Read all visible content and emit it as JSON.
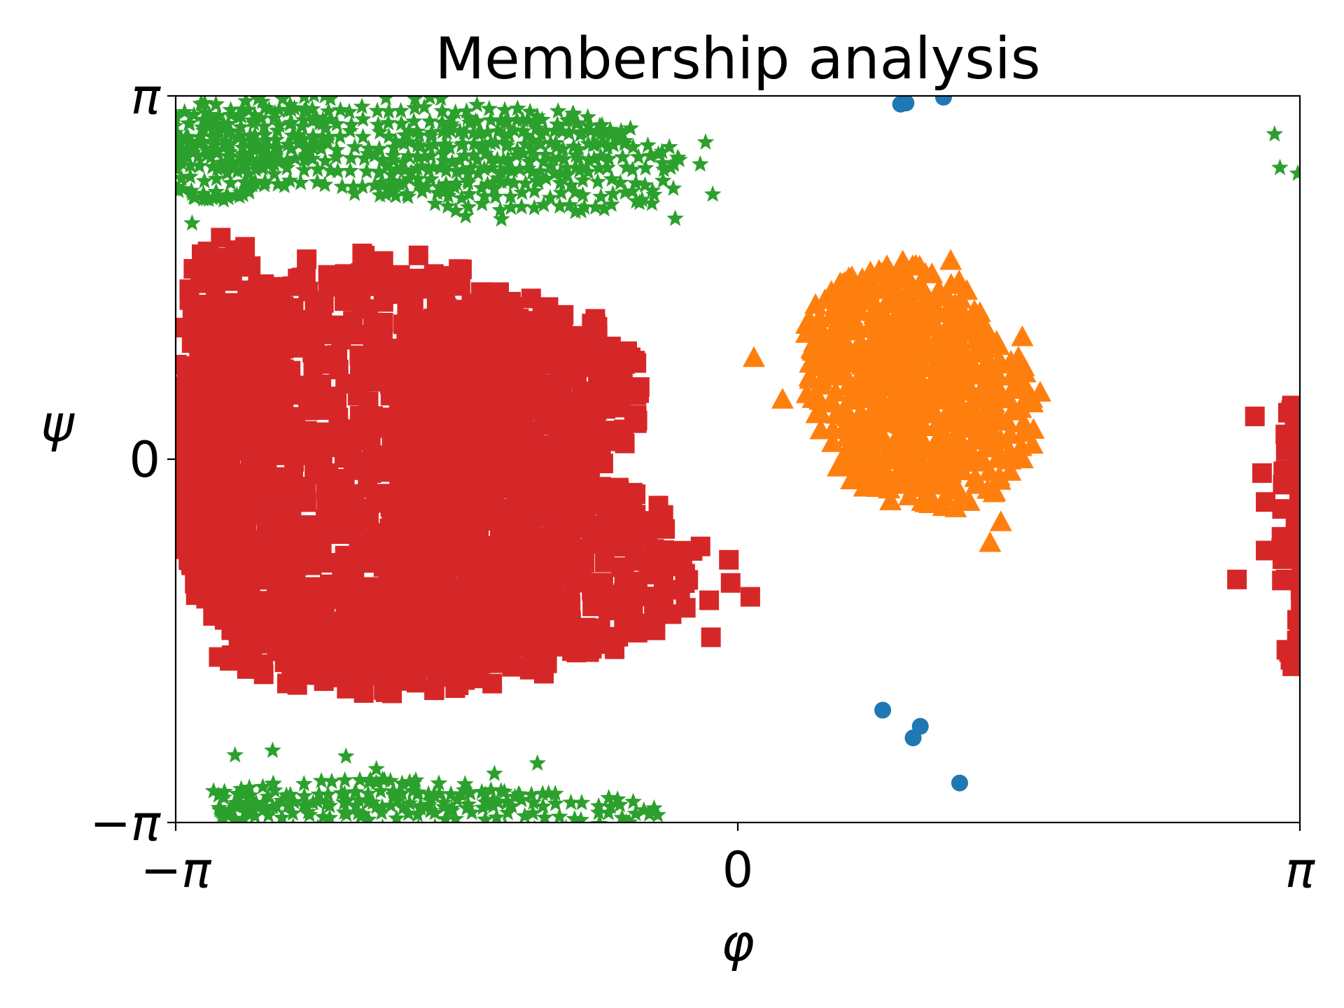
{
  "chart_data": {
    "type": "scatter",
    "title": "Membership analysis",
    "xlabel": "φ",
    "ylabel": "ψ",
    "xlim": [
      -3.14159,
      3.14159
    ],
    "ylim": [
      -3.14159,
      3.14159
    ],
    "xticks": [
      {
        "value": -3.14159,
        "label": "−π"
      },
      {
        "value": 0,
        "label": "0"
      },
      {
        "value": 3.14159,
        "label": "π"
      }
    ],
    "yticks": [
      {
        "value": -3.14159,
        "label": "−π"
      },
      {
        "value": 0,
        "label": "0"
      },
      {
        "value": 3.14159,
        "label": "π"
      }
    ],
    "grid": false,
    "legend": "none",
    "series": [
      {
        "color": "#1f77b4",
        "marker": "circle",
        "points": [
          [
            0.91,
            3.07
          ],
          [
            0.94,
            3.08
          ],
          [
            1.15,
            3.13
          ],
          [
            0.81,
            -2.17
          ],
          [
            1.02,
            -2.31
          ],
          [
            0.98,
            -2.41
          ],
          [
            1.24,
            -2.8
          ]
        ]
      },
      {
        "color": "#ff7f0e",
        "marker": "triangle",
        "regions": [
          {
            "cx": 0.92,
            "cy": 0.72,
            "rx": 0.52,
            "ry": 0.98
          },
          {
            "cx": 1.13,
            "cy": 0.38,
            "rx": 0.52,
            "ry": 0.8
          },
          {
            "cx": 0.82,
            "cy": 1.13,
            "rx": 0.42,
            "ry": 0.45
          }
        ],
        "points": [
          [
            1.19,
            1.72
          ],
          [
            1.28,
            1.46
          ],
          [
            1.59,
            1.06
          ],
          [
            1.69,
            0.58
          ],
          [
            0.09,
            0.88
          ],
          [
            0.25,
            0.52
          ],
          [
            1.47,
            -0.54
          ],
          [
            1.41,
            -0.72
          ],
          [
            0.61,
            1.11
          ],
          [
            1.55,
            0.74
          ]
        ]
      },
      {
        "color": "#2ca02c",
        "marker": "star",
        "regions": [
          {
            "cx": -1.96,
            "cy": 2.72,
            "rx": 1.25,
            "ry": 0.42
          },
          {
            "cx": -2.75,
            "cy": 2.82,
            "rx": 0.45,
            "ry": 0.28
          },
          {
            "cx": -1.2,
            "cy": 2.52,
            "rx": 0.85,
            "ry": 0.42
          },
          {
            "cx": -2.92,
            "cy": 2.55,
            "rx": 0.28,
            "ry": 0.3
          },
          {
            "cx": -1.7,
            "cy": -3.05,
            "rx": 1.2,
            "ry": 0.18
          },
          {
            "cx": -2.05,
            "cy": -2.92,
            "rx": 0.8,
            "ry": 0.14
          }
        ],
        "points": [
          [
            -0.18,
            2.74
          ],
          [
            -0.14,
            2.29
          ],
          [
            -0.35,
            2.08
          ],
          [
            -0.48,
            2.21
          ],
          [
            -0.42,
            2.56
          ],
          [
            -0.36,
            2.34
          ],
          [
            -0.21,
            2.55
          ],
          [
            -0.6,
            2.86
          ],
          [
            -3.05,
            2.04
          ],
          [
            -2.81,
            -2.56
          ],
          [
            -2.6,
            -2.52
          ],
          [
            -2.19,
            -2.57
          ],
          [
            -2.02,
            -2.68
          ],
          [
            -1.36,
            -2.72
          ],
          [
            -1.12,
            -2.63
          ],
          [
            3.0,
            2.81
          ],
          [
            3.03,
            2.52
          ],
          [
            3.13,
            2.47
          ],
          [
            -2.93,
            -2.87
          ],
          [
            -2.73,
            -2.84
          ]
        ]
      },
      {
        "color": "#d62728",
        "marker": "square",
        "regions": [
          {
            "cx": -2.0,
            "cy": -0.05,
            "rx": 1.25,
            "ry": 1.78
          },
          {
            "cx": -2.86,
            "cy": 0.3,
            "rx": 0.3,
            "ry": 1.6
          },
          {
            "cx": -1.1,
            "cy": -0.9,
            "rx": 0.85,
            "ry": 0.8
          },
          {
            "cx": -1.22,
            "cy": 0.55,
            "rx": 0.7,
            "ry": 0.8
          },
          {
            "cx": -1.9,
            "cy": -1.55,
            "rx": 1.0,
            "ry": 0.45
          },
          {
            "cx": 3.1,
            "cy": -0.65,
            "rx": 0.06,
            "ry": 1.1
          }
        ],
        "points": [
          [
            -0.58,
            0.38
          ],
          [
            -0.05,
            -0.87
          ],
          [
            -0.04,
            -1.07
          ],
          [
            -0.16,
            -1.22
          ],
          [
            0.07,
            -1.19
          ],
          [
            -0.15,
            -1.54
          ],
          [
            -0.37,
            -1.34
          ],
          [
            -0.46,
            -1.48
          ],
          [
            -0.56,
            -1.5
          ],
          [
            2.89,
            0.37
          ],
          [
            2.93,
            -0.12
          ],
          [
            2.95,
            -0.37
          ],
          [
            2.95,
            -0.79
          ],
          [
            2.79,
            -1.04
          ],
          [
            3.13,
            0.45
          ]
        ]
      }
    ]
  }
}
